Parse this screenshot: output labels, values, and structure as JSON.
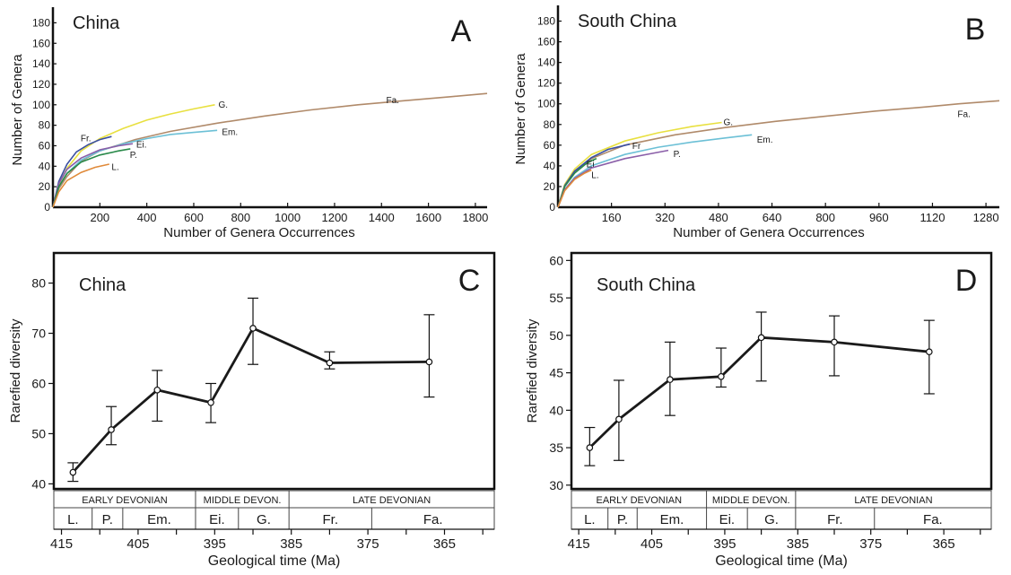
{
  "chart_data": [
    {
      "panel": "A",
      "type": "line",
      "title": "China",
      "xlabel": "Number of Genera Occurrences",
      "ylabel": "Number of Genera",
      "xlim": [
        0,
        1850
      ],
      "ylim": [
        0,
        190
      ],
      "xticks": [
        200,
        400,
        600,
        800,
        1000,
        1200,
        1400,
        1600,
        1800
      ],
      "yticks": [
        0,
        20,
        40,
        60,
        80,
        100,
        120,
        140,
        160,
        180
      ],
      "series": [
        {
          "name": "Fa.",
          "color": "#b08a6a",
          "x": [
            0,
            25,
            60,
            120,
            200,
            350,
            500,
            700,
            900,
            1100,
            1300,
            1500,
            1700,
            1850
          ],
          "y": [
            0,
            18,
            30,
            45,
            55,
            66,
            74,
            82,
            89,
            95,
            100,
            104,
            108,
            111
          ],
          "label_at": [
            1420,
            104
          ]
        },
        {
          "name": "G.",
          "color": "#e8e040",
          "x": [
            0,
            25,
            60,
            120,
            200,
            300,
            400,
            500,
            600,
            690
          ],
          "y": [
            0,
            22,
            38,
            55,
            67,
            77,
            85,
            91,
            96,
            100
          ],
          "label_at": [
            705,
            100
          ]
        },
        {
          "name": "Em.",
          "color": "#6cc0d6",
          "x": [
            0,
            25,
            60,
            120,
            200,
            300,
            400,
            500,
            600,
            700
          ],
          "y": [
            0,
            20,
            33,
            46,
            55,
            62,
            67,
            71,
            73,
            75
          ],
          "label_at": [
            720,
            73
          ]
        },
        {
          "name": "Fr.",
          "color": "#3a4fa0",
          "x": [
            0,
            25,
            60,
            100,
            150,
            200,
            250
          ],
          "y": [
            0,
            25,
            42,
            54,
            61,
            66,
            69
          ],
          "label_at": [
            118,
            67
          ]
        },
        {
          "name": "Ei.",
          "color": "#8a5ea8",
          "x": [
            0,
            25,
            60,
            120,
            200,
            280,
            340
          ],
          "y": [
            0,
            23,
            37,
            48,
            56,
            60,
            62
          ],
          "label_at": [
            355,
            61
          ]
        },
        {
          "name": "P.",
          "color": "#2a8a4a",
          "x": [
            0,
            25,
            60,
            120,
            200,
            280,
            330
          ],
          "y": [
            0,
            20,
            33,
            44,
            51,
            55,
            57
          ],
          "label_at": [
            328,
            51
          ]
        },
        {
          "name": "L.",
          "color": "#e08a3a",
          "x": [
            0,
            25,
            60,
            120,
            180,
            240
          ],
          "y": [
            0,
            15,
            26,
            34,
            39,
            42
          ],
          "label_at": [
            250,
            39
          ]
        }
      ]
    },
    {
      "panel": "B",
      "type": "line",
      "title": "South China",
      "xlabel": "Number of Genera Occurrences",
      "ylabel": "Number of Genera",
      "xlim": [
        0,
        1320
      ],
      "ylim": [
        0,
        190
      ],
      "xticks": [
        160,
        320,
        480,
        640,
        800,
        960,
        1120,
        1280
      ],
      "yticks": [
        0,
        20,
        40,
        60,
        80,
        100,
        120,
        140,
        160,
        180
      ],
      "series": [
        {
          "name": "Fa.",
          "color": "#b08a6a",
          "x": [
            0,
            20,
            50,
            100,
            200,
            350,
            500,
            650,
            800,
            950,
            1100,
            1200,
            1320
          ],
          "y": [
            0,
            20,
            34,
            47,
            60,
            70,
            77,
            83,
            88,
            93,
            97,
            100,
            103
          ],
          "label_at": [
            1195,
            90
          ]
        },
        {
          "name": "G.",
          "color": "#e8e040",
          "x": [
            0,
            20,
            50,
            100,
            200,
            300,
            400,
            490
          ],
          "y": [
            0,
            22,
            37,
            51,
            64,
            72,
            78,
            82
          ],
          "label_at": [
            495,
            82
          ]
        },
        {
          "name": "Fr",
          "color": "#3a4fa0",
          "x": [
            0,
            20,
            50,
            100,
            150,
            215
          ],
          "y": [
            0,
            21,
            35,
            48,
            56,
            61
          ],
          "label_at": [
            222,
            59
          ]
        },
        {
          "name": "Em.",
          "color": "#6cc0d6",
          "x": [
            0,
            20,
            50,
            100,
            200,
            300,
            400,
            500,
            580
          ],
          "y": [
            0,
            17,
            29,
            40,
            51,
            58,
            63,
            67,
            70
          ],
          "label_at": [
            595,
            65
          ]
        },
        {
          "name": "Ei.",
          "color": "#2a8a4a",
          "x": [
            0,
            20,
            50,
            80,
            100,
            115
          ],
          "y": [
            0,
            20,
            33,
            41,
            45,
            47
          ],
          "label_at": [
            85,
            41
          ]
        },
        {
          "name": "P.",
          "color": "#8a5ea8",
          "x": [
            0,
            20,
            50,
            100,
            200,
            280,
            330
          ],
          "y": [
            0,
            17,
            28,
            38,
            47,
            52,
            55
          ],
          "label_at": [
            345,
            51
          ]
        },
        {
          "name": "L.",
          "color": "#e08a3a",
          "x": [
            0,
            20,
            50,
            80,
            100
          ],
          "y": [
            0,
            16,
            27,
            33,
            36
          ],
          "label_at": [
            100,
            31
          ]
        }
      ]
    },
    {
      "panel": "C",
      "type": "line",
      "title": "China",
      "xlabel": "Geological time (Ma)",
      "ylabel": "Rarefied diversity",
      "xlim": [
        416,
        358.5
      ],
      "ylim": [
        39,
        86
      ],
      "xticks": [
        415,
        410,
        405,
        400,
        395,
        390,
        385,
        380,
        375,
        370,
        365,
        360
      ],
      "xtick_labels": [
        "415",
        "",
        "405",
        "",
        "395",
        "",
        "385",
        "",
        "375",
        "",
        "365",
        ""
      ],
      "yticks": [
        40,
        50,
        60,
        70,
        80
      ],
      "points": [
        {
          "x": 413.5,
          "y": 42.3,
          "lo": 40.5,
          "hi": 44.2
        },
        {
          "x": 408.5,
          "y": 50.8,
          "lo": 47.8,
          "hi": 55.4
        },
        {
          "x": 402.5,
          "y": 58.7,
          "lo": 52.5,
          "hi": 62.6
        },
        {
          "x": 395.5,
          "y": 56.2,
          "lo": 52.2,
          "hi": 60.0
        },
        {
          "x": 390.0,
          "y": 71.0,
          "lo": 63.8,
          "hi": 77.0
        },
        {
          "x": 380.0,
          "y": 64.1,
          "lo": 62.9,
          "hi": 66.3
        },
        {
          "x": 367.0,
          "y": 64.3,
          "lo": 57.3,
          "hi": 73.7
        }
      ],
      "periods": [
        {
          "label": "EARLY DEVONIAN",
          "from": 416,
          "to": 397.5
        },
        {
          "label": "MIDDLE DEVON.",
          "from": 397.5,
          "to": 385.3
        },
        {
          "label": "LATE DEVONIAN",
          "from": 385.3,
          "to": 358.5
        }
      ],
      "stages": [
        {
          "label": "L.",
          "from": 416,
          "to": 411
        },
        {
          "label": "P.",
          "from": 411,
          "to": 407
        },
        {
          "label": "Em.",
          "from": 407,
          "to": 397.5
        },
        {
          "label": "Ei.",
          "from": 397.5,
          "to": 391.9
        },
        {
          "label": "G.",
          "from": 391.9,
          "to": 385.3
        },
        {
          "label": "Fr.",
          "from": 385.3,
          "to": 374.5
        },
        {
          "label": "Fa.",
          "from": 374.5,
          "to": 358.5
        }
      ]
    },
    {
      "panel": "D",
      "type": "line",
      "title": "South China",
      "xlabel": "Geological time (Ma)",
      "ylabel": "Rarefied diversity",
      "xlim": [
        416,
        358.5
      ],
      "ylim": [
        29.5,
        61
      ],
      "xticks": [
        415,
        410,
        405,
        400,
        395,
        390,
        385,
        380,
        375,
        370,
        365,
        360
      ],
      "xtick_labels": [
        "415",
        "",
        "405",
        "",
        "395",
        "",
        "385",
        "",
        "375",
        "",
        "365",
        ""
      ],
      "yticks": [
        30,
        35,
        40,
        45,
        50,
        55,
        60
      ],
      "points": [
        {
          "x": 413.5,
          "y": 35.0,
          "lo": 32.6,
          "hi": 37.7
        },
        {
          "x": 409.5,
          "y": 38.8,
          "lo": 33.3,
          "hi": 44.0
        },
        {
          "x": 402.5,
          "y": 44.1,
          "lo": 39.3,
          "hi": 49.1
        },
        {
          "x": 395.5,
          "y": 44.5,
          "lo": 43.1,
          "hi": 48.3
        },
        {
          "x": 390.0,
          "y": 49.7,
          "lo": 43.9,
          "hi": 53.1
        },
        {
          "x": 380.0,
          "y": 49.1,
          "lo": 44.6,
          "hi": 52.6
        },
        {
          "x": 367.0,
          "y": 47.8,
          "lo": 42.2,
          "hi": 52.0
        }
      ],
      "periods": [
        {
          "label": "EARLY DEVONIAN",
          "from": 416,
          "to": 397.5
        },
        {
          "label": "MIDDLE DEVON.",
          "from": 397.5,
          "to": 385.3
        },
        {
          "label": "LATE DEVONIAN",
          "from": 385.3,
          "to": 358.5
        }
      ],
      "stages": [
        {
          "label": "L.",
          "from": 416,
          "to": 411
        },
        {
          "label": "P.",
          "from": 411,
          "to": 407
        },
        {
          "label": "Em.",
          "from": 407,
          "to": 397.5
        },
        {
          "label": "Ei.",
          "from": 397.5,
          "to": 391.9
        },
        {
          "label": "G.",
          "from": 391.9,
          "to": 385.3
        },
        {
          "label": "Fr.",
          "from": 385.3,
          "to": 374.5
        },
        {
          "label": "Fa.",
          "from": 374.5,
          "to": 358.5
        }
      ]
    }
  ],
  "panel_letters": [
    "A",
    "B",
    "C",
    "D"
  ]
}
